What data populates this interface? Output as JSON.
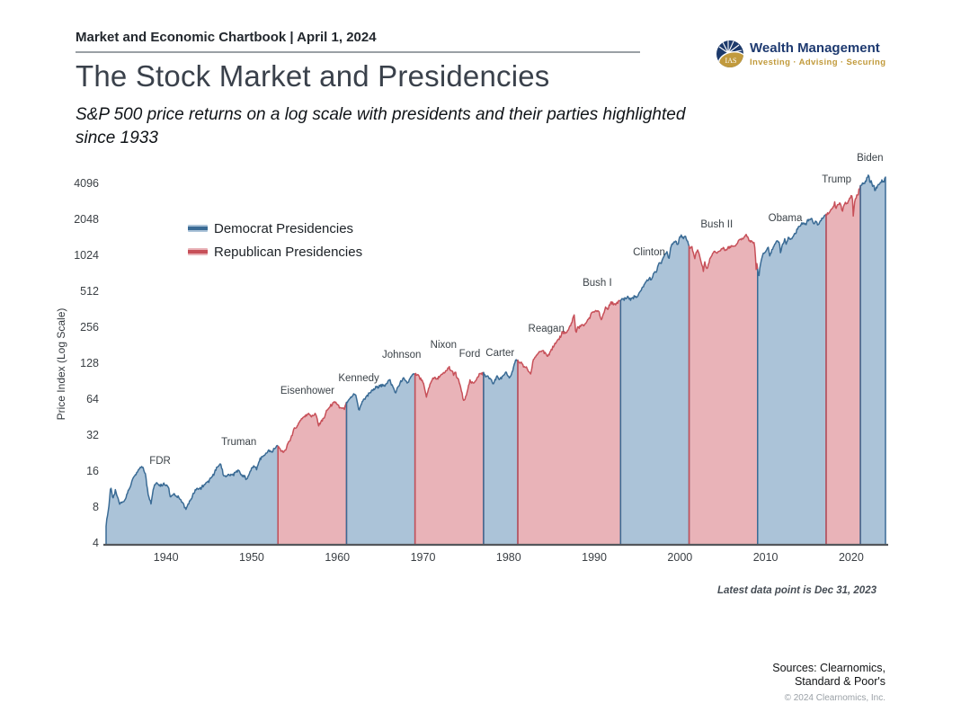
{
  "header": {
    "chartbook": "Market and Economic Chartbook | April 1, 2024"
  },
  "logo": {
    "name": "Wealth Management",
    "tagline": "Investing · Advising · Securing",
    "monogram": "IAS",
    "navy": "#1d3a6b",
    "gold": "#c19a3d"
  },
  "title": "The Stock Market and Presidencies",
  "subtitle": "S&P 500 price returns on a log scale with presidents and their parties highlighted since 1933",
  "footnote": "Latest data point is Dec 31, 2023",
  "sources": {
    "line1": "Sources: Clearnomics,",
    "line2": "Standard & Poor's",
    "copyright": "© 2024 Clearnomics, Inc."
  },
  "chart_data": {
    "type": "area",
    "title": "The Stock Market and Presidencies",
    "ylabel": "Price Index (Log Scale)",
    "scale": "log2",
    "grid": false,
    "y_ticks": [
      4096,
      2048,
      1024,
      512,
      256,
      128,
      64,
      32,
      16,
      8,
      4
    ],
    "x_ticks": [
      1940,
      1950,
      1960,
      1970,
      1980,
      1990,
      2000,
      2010,
      2020
    ],
    "x_range": [
      1933,
      2024
    ],
    "y_range": [
      4,
      4096
    ],
    "legend": [
      {
        "label": "Democrat Presidencies",
        "fill": "#abc3d8",
        "line": "#3a6b95"
      },
      {
        "label": "Republican Presidencies",
        "fill": "#e9b3b8",
        "line": "#c75059"
      }
    ],
    "axis_color": "#53575c",
    "presidents": [
      {
        "name": "FDR",
        "party": "D",
        "start": 1933.0,
        "end": 1945.3,
        "label": [
          1939.3,
          19.7
        ]
      },
      {
        "name": "Truman",
        "party": "D",
        "start": 1945.3,
        "end": 1953.07,
        "label": [
          1948.5,
          28.2
        ]
      },
      {
        "name": "Eisenhower",
        "party": "R",
        "start": 1953.07,
        "end": 1961.07,
        "label": [
          1956.5,
          76
        ]
      },
      {
        "name": "Kennedy",
        "party": "D",
        "start": 1961.07,
        "end": 1963.9,
        "label": [
          1962.5,
          97
        ]
      },
      {
        "name": "Johnson",
        "party": "D",
        "start": 1963.9,
        "end": 1969.07,
        "label": [
          1967.5,
          152
        ]
      },
      {
        "name": "Nixon",
        "party": "R",
        "start": 1969.07,
        "end": 1974.6,
        "label": [
          1972.4,
          183
        ]
      },
      {
        "name": "Ford",
        "party": "R",
        "start": 1974.6,
        "end": 1977.07,
        "label": [
          1975.45,
          155
        ]
      },
      {
        "name": "Carter",
        "party": "D",
        "start": 1977.07,
        "end": 1981.07,
        "label": [
          1979.0,
          158
        ]
      },
      {
        "name": "Reagan",
        "party": "R",
        "start": 1981.07,
        "end": 1989.07,
        "label": [
          1984.4,
          251
        ]
      },
      {
        "name": "Bush I",
        "party": "R",
        "start": 1989.07,
        "end": 1993.07,
        "label": [
          1990.35,
          610
        ]
      },
      {
        "name": "Clinton",
        "party": "D",
        "start": 1993.07,
        "end": 2001.07,
        "label": [
          1996.4,
          1095
        ]
      },
      {
        "name": "Bush II",
        "party": "R",
        "start": 2001.07,
        "end": 2009.07,
        "label": [
          2004.3,
          1870
        ]
      },
      {
        "name": "Obama",
        "party": "D",
        "start": 2009.07,
        "end": 2017.07,
        "label": [
          2012.3,
          2105
        ]
      },
      {
        "name": "Trump",
        "party": "R",
        "start": 2017.07,
        "end": 2021.07,
        "label": [
          2018.3,
          4480
        ]
      },
      {
        "name": "Biden",
        "party": "D",
        "start": 2021.07,
        "end": 2024.0,
        "label": [
          2022.2,
          6750
        ]
      }
    ],
    "sp500_anchors": [
      [
        1933.0,
        5.8
      ],
      [
        1933.3,
        8.0
      ],
      [
        1933.55,
        12.2
      ],
      [
        1933.8,
        9.3
      ],
      [
        1934.1,
        11.2
      ],
      [
        1934.6,
        8.6
      ],
      [
        1935.2,
        9.4
      ],
      [
        1935.7,
        11.5
      ],
      [
        1936.1,
        13.8
      ],
      [
        1936.9,
        17.2
      ],
      [
        1937.2,
        18.1
      ],
      [
        1937.6,
        15.3
      ],
      [
        1937.9,
        10.5
      ],
      [
        1938.25,
        8.9
      ],
      [
        1938.6,
        12.2
      ],
      [
        1938.9,
        13.1
      ],
      [
        1939.3,
        12.2
      ],
      [
        1939.7,
        12.8
      ],
      [
        1940.3,
        12.1
      ],
      [
        1940.45,
        9.7
      ],
      [
        1940.9,
        10.5
      ],
      [
        1941.5,
        9.8
      ],
      [
        1941.95,
        8.7
      ],
      [
        1942.3,
        7.8
      ],
      [
        1942.9,
        9.4
      ],
      [
        1943.5,
        11.6
      ],
      [
        1944.0,
        11.7
      ],
      [
        1944.5,
        12.5
      ],
      [
        1945.0,
        13.5
      ],
      [
        1945.5,
        15.0
      ],
      [
        1945.95,
        17.4
      ],
      [
        1946.4,
        18.7
      ],
      [
        1946.75,
        14.7
      ],
      [
        1947.3,
        15.0
      ],
      [
        1947.9,
        15.2
      ],
      [
        1948.4,
        16.7
      ],
      [
        1948.9,
        15.1
      ],
      [
        1949.45,
        13.9
      ],
      [
        1949.95,
        16.8
      ],
      [
        1950.45,
        18.0
      ],
      [
        1950.6,
        16.9
      ],
      [
        1950.95,
        20.4
      ],
      [
        1951.4,
        21.8
      ],
      [
        1951.95,
        23.8
      ],
      [
        1952.4,
        23.9
      ],
      [
        1952.95,
        26.6
      ],
      [
        1953.2,
        25.6
      ],
      [
        1953.7,
        22.9
      ],
      [
        1954.0,
        24.8
      ],
      [
        1954.5,
        30.0
      ],
      [
        1954.95,
        36.0
      ],
      [
        1955.5,
        41.0
      ],
      [
        1955.95,
        45.5
      ],
      [
        1956.6,
        49.4
      ],
      [
        1956.95,
        46.7
      ],
      [
        1957.5,
        49.0
      ],
      [
        1957.8,
        39.2
      ],
      [
        1958.4,
        45.0
      ],
      [
        1958.95,
        55.2
      ],
      [
        1959.6,
        60.5
      ],
      [
        1959.95,
        59.9
      ],
      [
        1960.3,
        54.4
      ],
      [
        1960.8,
        53.4
      ],
      [
        1960.95,
        58.1
      ],
      [
        1961.5,
        66.5
      ],
      [
        1961.95,
        72.6
      ],
      [
        1962.2,
        69.6
      ],
      [
        1962.5,
        52.3
      ],
      [
        1962.95,
        63.1
      ],
      [
        1963.5,
        70.0
      ],
      [
        1963.95,
        75.0
      ],
      [
        1964.5,
        81.7
      ],
      [
        1964.95,
        84.8
      ],
      [
        1965.5,
        84.1
      ],
      [
        1965.95,
        92.4
      ],
      [
        1966.1,
        93.8
      ],
      [
        1966.8,
        73.2
      ],
      [
        1967.3,
        89.0
      ],
      [
        1967.75,
        96.7
      ],
      [
        1968.2,
        89.1
      ],
      [
        1968.9,
        108.4
      ],
      [
        1969.4,
        103.0
      ],
      [
        1969.6,
        97.7
      ],
      [
        1970.0,
        90.3
      ],
      [
        1970.4,
        69.3
      ],
      [
        1970.95,
        92.2
      ],
      [
        1971.3,
        100.7
      ],
      [
        1971.6,
        94.2
      ],
      [
        1971.95,
        102.1
      ],
      [
        1972.5,
        107.1
      ],
      [
        1972.95,
        118.1
      ],
      [
        1973.05,
        119.9
      ],
      [
        1973.6,
        104.0
      ],
      [
        1973.8,
        108.3
      ],
      [
        1974.0,
        97.6
      ],
      [
        1974.2,
        93.0
      ],
      [
        1974.75,
        62.3
      ],
      [
        1975.0,
        68.6
      ],
      [
        1975.5,
        92.5
      ],
      [
        1975.7,
        88.2
      ],
      [
        1975.95,
        90.2
      ],
      [
        1976.7,
        107.8
      ],
      [
        1976.95,
        107.5
      ],
      [
        1977.5,
        100.2
      ],
      [
        1977.95,
        95.1
      ],
      [
        1978.2,
        87.0
      ],
      [
        1978.7,
        103.9
      ],
      [
        1978.85,
        94.3
      ],
      [
        1979.0,
        96.1
      ],
      [
        1979.75,
        109.3
      ],
      [
        1979.85,
        102.8
      ],
      [
        1980.2,
        98.2
      ],
      [
        1980.85,
        140.5
      ],
      [
        1980.95,
        135.8
      ],
      [
        1981.6,
        130.9
      ],
      [
        1981.75,
        122.8
      ],
      [
        1982.0,
        120.4
      ],
      [
        1982.6,
        102.4
      ],
      [
        1982.85,
        138.5
      ],
      [
        1982.95,
        140.6
      ],
      [
        1983.5,
        162.4
      ],
      [
        1983.8,
        166.1
      ],
      [
        1984.05,
        163.4
      ],
      [
        1984.55,
        150.6
      ],
      [
        1984.95,
        167.2
      ],
      [
        1985.5,
        191.9
      ],
      [
        1985.95,
        211.3
      ],
      [
        1986.3,
        238.9
      ],
      [
        1986.7,
        231.3
      ],
      [
        1986.95,
        242.2
      ],
      [
        1987.4,
        288.4
      ],
      [
        1987.65,
        336.8
      ],
      [
        1987.8,
        251.8
      ],
      [
        1987.85,
        230.3
      ],
      [
        1988.05,
        257.1
      ],
      [
        1988.5,
        270.7
      ],
      [
        1988.95,
        277.7
      ],
      [
        1989.5,
        318.0
      ],
      [
        1989.75,
        349.2
      ],
      [
        1989.95,
        353.4
      ],
      [
        1990.45,
        361.2
      ],
      [
        1990.55,
        358.0
      ],
      [
        1990.8,
        295.5
      ],
      [
        1991.1,
        343.9
      ],
      [
        1991.3,
        375.2
      ],
      [
        1991.6,
        371.2
      ],
      [
        1991.95,
        417.1
      ],
      [
        1992.5,
        408.1
      ],
      [
        1992.95,
        435.7
      ],
      [
        1993.5,
        450.5
      ],
      [
        1993.95,
        466.5
      ],
      [
        1994.3,
        445.8
      ],
      [
        1994.7,
        471.0
      ],
      [
        1994.95,
        459.3
      ],
      [
        1995.5,
        544.8
      ],
      [
        1995.95,
        615.9
      ],
      [
        1996.5,
        670.6
      ],
      [
        1996.6,
        635.0
      ],
      [
        1996.95,
        740.7
      ],
      [
        1997.3,
        757.1
      ],
      [
        1997.5,
        885.1
      ],
      [
        1997.8,
        914.6
      ],
      [
        1997.85,
        876.0
      ],
      [
        1997.95,
        970.4
      ],
      [
        1998.5,
        1133.8
      ],
      [
        1998.7,
        957.3
      ],
      [
        1998.95,
        1229.2
      ],
      [
        1999.5,
        1372.7
      ],
      [
        1999.8,
        1282.7
      ],
      [
        1999.95,
        1469.3
      ],
      [
        2000.2,
        1527.5
      ],
      [
        2000.4,
        1420.6
      ],
      [
        2000.65,
        1517.7
      ],
      [
        2000.95,
        1320.3
      ],
      [
        2001.2,
        1160.3
      ],
      [
        2001.4,
        1255.8
      ],
      [
        2001.72,
        965.8
      ],
      [
        2001.95,
        1148.1
      ],
      [
        2002.2,
        1106.7
      ],
      [
        2002.75,
        776.8
      ],
      [
        2002.9,
        936.3
      ],
      [
        2002.95,
        879.8
      ],
      [
        2003.2,
        800.7
      ],
      [
        2003.5,
        974.5
      ],
      [
        2003.95,
        1111.9
      ],
      [
        2004.6,
        1101.7
      ],
      [
        2004.95,
        1211.9
      ],
      [
        2005.3,
        1156.9
      ],
      [
        2005.95,
        1248.3
      ],
      [
        2006.5,
        1270.1
      ],
      [
        2006.95,
        1418.3
      ],
      [
        2007.4,
        1420.9
      ],
      [
        2007.55,
        1503.4
      ],
      [
        2007.78,
        1565.2
      ],
      [
        2007.95,
        1468.4
      ],
      [
        2008.2,
        1330.6
      ],
      [
        2008.4,
        1385.6
      ],
      [
        2008.7,
        1282.8
      ],
      [
        2008.85,
        968.8
      ],
      [
        2008.92,
        752.4
      ],
      [
        2008.97,
        903.3
      ],
      [
        2009.05,
        825.9
      ],
      [
        2009.2,
        676.5
      ],
      [
        2009.45,
        919.3
      ],
      [
        2009.7,
        1057.1
      ],
      [
        2009.95,
        1115.1
      ],
      [
        2010.3,
        1217.3
      ],
      [
        2010.5,
        1030.7
      ],
      [
        2010.95,
        1257.6
      ],
      [
        2011.35,
        1363.6
      ],
      [
        2011.6,
        1345.0
      ],
      [
        2011.75,
        1099.2
      ],
      [
        2011.95,
        1257.6
      ],
      [
        2012.25,
        1408.5
      ],
      [
        2012.4,
        1278.0
      ],
      [
        2012.7,
        1461.4
      ],
      [
        2012.95,
        1426.2
      ],
      [
        2013.5,
        1606.3
      ],
      [
        2013.95,
        1848.4
      ],
      [
        2014.5,
        1960.2
      ],
      [
        2014.75,
        1862.5
      ],
      [
        2014.95,
        2058.9
      ],
      [
        2015.4,
        2117.7
      ],
      [
        2015.65,
        1867.6
      ],
      [
        2015.85,
        2079.4
      ],
      [
        2016.1,
        1829.1
      ],
      [
        2016.5,
        2098.9
      ],
      [
        2016.95,
        2238.8
      ],
      [
        2017.5,
        2423.4
      ],
      [
        2017.95,
        2673.6
      ],
      [
        2018.07,
        2872.9
      ],
      [
        2018.15,
        2581.0
      ],
      [
        2018.7,
        2914.0
      ],
      [
        2018.97,
        2351.1
      ],
      [
        2019.1,
        2650.0
      ],
      [
        2019.35,
        2945.8
      ],
      [
        2019.45,
        2752.1
      ],
      [
        2019.95,
        3230.8
      ],
      [
        2020.12,
        3386.2
      ],
      [
        2020.23,
        2237.4
      ],
      [
        2020.45,
        3044.3
      ],
      [
        2020.7,
        3363.0
      ],
      [
        2020.78,
        3270.0
      ],
      [
        2020.95,
        3756.1
      ],
      [
        2021.5,
        4297.5
      ],
      [
        2021.7,
        4307.5
      ],
      [
        2021.95,
        4766.2
      ],
      [
        2022.05,
        4796.6
      ],
      [
        2022.2,
        4170.7
      ],
      [
        2022.35,
        4459.4
      ],
      [
        2022.48,
        3900.8
      ],
      [
        2022.6,
        4130.3
      ],
      [
        2022.78,
        3577.0
      ],
      [
        2022.95,
        3839.5
      ],
      [
        2023.1,
        3970.2
      ],
      [
        2023.35,
        4109.3
      ],
      [
        2023.55,
        4450.4
      ],
      [
        2023.8,
        4193.8
      ],
      [
        2024.0,
        4769.8
      ]
    ]
  }
}
